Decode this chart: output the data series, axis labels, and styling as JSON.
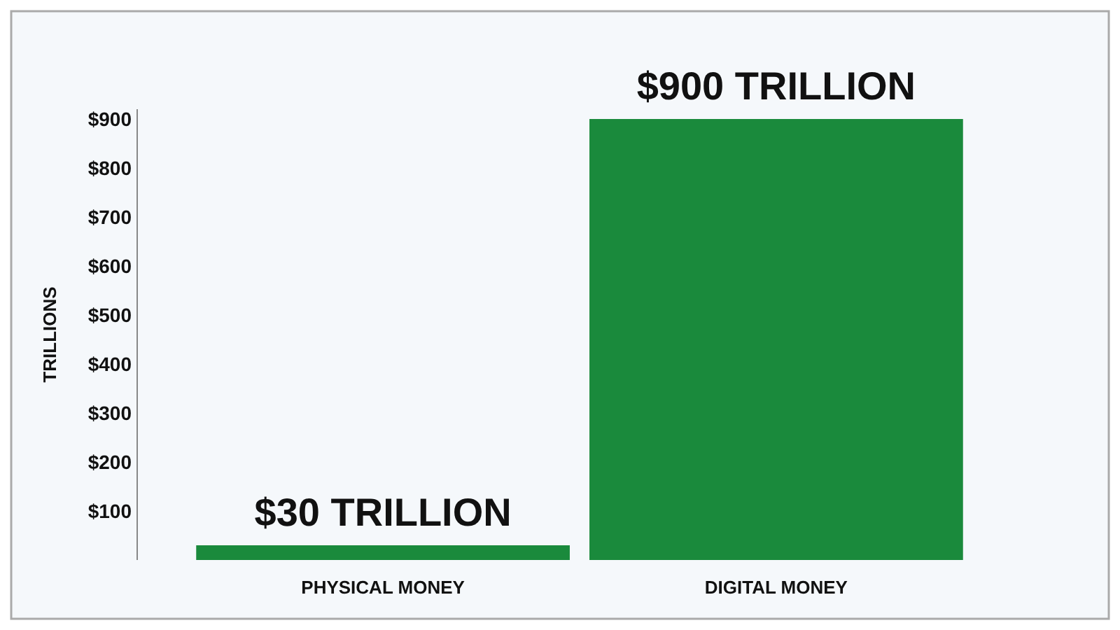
{
  "chart_data": {
    "type": "bar",
    "ylabel": "TRILLIONS",
    "categories": [
      "PHYSICAL MONEY",
      "DIGITAL MONEY"
    ],
    "values": [
      30,
      900
    ],
    "color": "#1a8a3c",
    "value_labels": [
      "$30 TRILLION",
      "$900 TRILLION"
    ],
    "ylim": [
      0,
      920
    ],
    "yticks": [
      {
        "value": 100,
        "label": "$100"
      },
      {
        "value": 200,
        "label": "$200"
      },
      {
        "value": 300,
        "label": "$300"
      },
      {
        "value": 400,
        "label": "$400"
      },
      {
        "value": 500,
        "label": "$500"
      },
      {
        "value": 600,
        "label": "$600"
      },
      {
        "value": 700,
        "label": "$700"
      },
      {
        "value": 800,
        "label": "$800"
      },
      {
        "value": 900,
        "label": "$900"
      }
    ]
  }
}
